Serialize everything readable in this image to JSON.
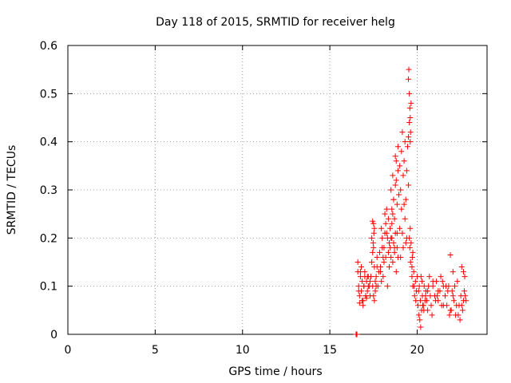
{
  "chart_data": {
    "type": "scatter",
    "title": "Day 118 of 2015, SRMTID for receiver helg",
    "xlabel": "GPS time / hours",
    "ylabel": "SRMTID / TECUs",
    "xlim": [
      0,
      24
    ],
    "ylim": [
      0,
      0.6
    ],
    "xticks": [
      0,
      5,
      10,
      15,
      20
    ],
    "xtick_labels": [
      "0",
      "5",
      "10",
      "15",
      "20"
    ],
    "yticks": [
      0,
      0.1,
      0.2,
      0.3,
      0.4,
      0.5,
      0.6
    ],
    "ytick_labels": [
      "0",
      "0.1",
      "0.2",
      "0.3",
      "0.4",
      "0.5",
      "0.6"
    ],
    "grid": true,
    "marker": "+",
    "color": "#ff0000",
    "series": [
      {
        "x": [
          16.5,
          16.52,
          16.55,
          16.6,
          16.65,
          16.7,
          16.75,
          16.8,
          16.85,
          16.9,
          16.95,
          17.0,
          17.05,
          17.1,
          17.15,
          17.2,
          17.25,
          17.3,
          16.6,
          16.7,
          16.8,
          16.9,
          17.0,
          17.1,
          17.2,
          17.3,
          16.65,
          16.75,
          16.85,
          16.95,
          17.05,
          17.15,
          17.35,
          17.4,
          17.45,
          17.5,
          17.55,
          17.6,
          17.65,
          17.7,
          17.75,
          17.8,
          17.4,
          17.5,
          17.6,
          17.7,
          17.45,
          17.55,
          17.65,
          17.45,
          17.5,
          17.55,
          17.48,
          17.52,
          17.85,
          17.9,
          17.95,
          18.0,
          18.05,
          18.1,
          18.15,
          18.2,
          18.25,
          18.3,
          18.35,
          18.4,
          17.9,
          18.0,
          18.1,
          18.2,
          18.3,
          17.95,
          18.05,
          18.15,
          18.25,
          18.35,
          18.45,
          18.5,
          18.55,
          18.6,
          18.65,
          18.7,
          18.75,
          18.8,
          18.85,
          18.9,
          18.95,
          18.5,
          18.6,
          18.7,
          18.8,
          18.9,
          18.55,
          18.65,
          18.75,
          18.85,
          18.4,
          18.45,
          18.5,
          18.55,
          18.6,
          18.65,
          18.7,
          18.75,
          18.8,
          18.85,
          18.9,
          19.0,
          19.05,
          19.1,
          19.15,
          19.2,
          19.25,
          19.3,
          19.35,
          19.4,
          19.45,
          19.5,
          19.0,
          19.1,
          19.2,
          19.3,
          19.4,
          19.05,
          19.15,
          19.25,
          19.35,
          19.5,
          19.52,
          19.55,
          19.58,
          19.6,
          19.62,
          19.65,
          19.5,
          19.55,
          19.6,
          19.55,
          19.58,
          19.6,
          19.62,
          19.65,
          19.7,
          19.75,
          19.7,
          19.75,
          19.8,
          19.85,
          19.9,
          19.95,
          20.0,
          19.72,
          19.82,
          19.92,
          20.05,
          20.1,
          20.15,
          20.2,
          20.25,
          20.3,
          20.35,
          20.4,
          20.45,
          20.5,
          20.08,
          20.18,
          20.28,
          20.38,
          20.48,
          20.12,
          20.22,
          20.32,
          20.55,
          20.6,
          20.7,
          20.8,
          20.9,
          21.0,
          21.1,
          21.2,
          21.3,
          21.4,
          21.5,
          20.6,
          20.75,
          20.9,
          21.05,
          21.2,
          21.35,
          21.5,
          20.65,
          20.85,
          21.15,
          21.45,
          21.6,
          21.7,
          21.8,
          21.9,
          22.0,
          22.1,
          22.2,
          22.3,
          22.4,
          22.5,
          22.6,
          22.7,
          22.8,
          21.65,
          21.85,
          22.05,
          22.25,
          22.45,
          22.65,
          21.75,
          21.95,
          22.15,
          22.35,
          22.55,
          22.75,
          21.9,
          22.05,
          22.55,
          22.65,
          22.72
        ],
        "y": [
          0.0,
          0.0,
          0.0,
          0.13,
          0.1,
          0.08,
          0.12,
          0.09,
          0.11,
          0.07,
          0.1,
          0.13,
          0.08,
          0.11,
          0.09,
          0.12,
          0.1,
          0.08,
          0.15,
          0.065,
          0.14,
          0.06,
          0.12,
          0.075,
          0.1,
          0.11,
          0.09,
          0.13,
          0.07,
          0.1,
          0.08,
          0.12,
          0.12,
          0.15,
          0.1,
          0.18,
          0.14,
          0.09,
          0.12,
          0.16,
          0.1,
          0.13,
          0.2,
          0.08,
          0.11,
          0.14,
          0.17,
          0.07,
          0.1,
          0.235,
          0.23,
          0.22,
          0.19,
          0.21,
          0.17,
          0.14,
          0.22,
          0.2,
          0.12,
          0.18,
          0.25,
          0.16,
          0.21,
          0.1,
          0.24,
          0.19,
          0.13,
          0.18,
          0.15,
          0.23,
          0.2,
          0.11,
          0.16,
          0.21,
          0.26,
          0.17,
          0.22,
          0.3,
          0.26,
          0.33,
          0.28,
          0.24,
          0.31,
          0.36,
          0.27,
          0.34,
          0.29,
          0.2,
          0.25,
          0.18,
          0.32,
          0.39,
          0.23,
          0.28,
          0.37,
          0.21,
          0.14,
          0.18,
          0.16,
          0.2,
          0.15,
          0.19,
          0.17,
          0.21,
          0.13,
          0.18,
          0.16,
          0.35,
          0.3,
          0.38,
          0.42,
          0.33,
          0.36,
          0.4,
          0.28,
          0.34,
          0.39,
          0.31,
          0.22,
          0.26,
          0.18,
          0.24,
          0.2,
          0.16,
          0.21,
          0.27,
          0.19,
          0.53,
          0.55,
          0.5,
          0.47,
          0.45,
          0.42,
          0.48,
          0.41,
          0.44,
          0.4,
          0.2,
          0.18,
          0.22,
          0.15,
          0.19,
          0.12,
          0.17,
          0.14,
          0.1,
          0.13,
          0.08,
          0.11,
          0.09,
          0.12,
          0.16,
          0.1,
          0.07,
          0.06,
          0.04,
          0.03,
          0.015,
          0.05,
          0.08,
          0.06,
          0.1,
          0.07,
          0.09,
          0.09,
          0.07,
          0.11,
          0.05,
          0.08,
          0.1,
          0.12,
          0.06,
          0.07,
          0.09,
          0.12,
          0.06,
          0.1,
          0.08,
          0.11,
          0.07,
          0.09,
          0.06,
          0.1,
          0.05,
          0.08,
          0.11,
          0.07,
          0.09,
          0.12,
          0.06,
          0.1,
          0.04,
          0.08,
          0.11,
          0.08,
          0.06,
          0.1,
          0.05,
          0.09,
          0.07,
          0.04,
          0.11,
          0.06,
          0.08,
          0.05,
          0.09,
          0.07,
          0.1,
          0.04,
          0.08,
          0.06,
          0.03,
          0.07,
          0.09,
          0.05,
          0.1,
          0.04,
          0.06,
          0.08,
          0.165,
          0.13,
          0.14,
          0.13,
          0.12
        ]
      }
    ]
  }
}
